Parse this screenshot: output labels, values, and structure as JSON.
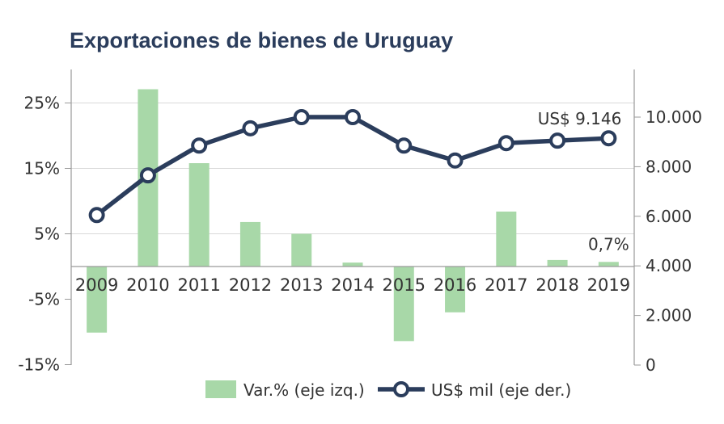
{
  "chart_data": {
    "type": "bar",
    "title": "Exportaciones de bienes de Uruguay",
    "categories": [
      "2009",
      "2010",
      "2011",
      "2012",
      "2013",
      "2014",
      "2015",
      "2016",
      "2017",
      "2018",
      "2019"
    ],
    "series": [
      {
        "name": "Var.% (eje izq.)",
        "type": "bar",
        "axis": "left",
        "color": "#a8d8a8",
        "values": [
          -10.1,
          27.1,
          15.8,
          6.8,
          5.0,
          0.6,
          -11.4,
          -7.0,
          8.4,
          1.0,
          0.7
        ]
      },
      {
        "name": "US$ mil (eje der.)",
        "type": "line",
        "axis": "right",
        "color": "#2b3d5c",
        "values": [
          6050,
          7650,
          8850,
          9550,
          10000,
          10000,
          8850,
          8250,
          8950,
          9050,
          9146
        ]
      }
    ],
    "left_axis": {
      "ylim": [
        -15,
        30
      ],
      "ticks": [
        25,
        15,
        5,
        -5,
        -15
      ],
      "tick_labels": [
        "25%",
        "15%",
        "5%",
        "-5%",
        "-15%"
      ]
    },
    "right_axis": {
      "ylim": [
        0,
        11000
      ],
      "ticks": [
        10000,
        8000,
        6000,
        4000,
        2000,
        0
      ],
      "tick_labels": [
        "10.000",
        "8.000",
        "6.000",
        "4.000",
        "2.000",
        "0"
      ]
    },
    "grid": true,
    "legend_position": "bottom",
    "annotations": [
      {
        "text": "US$ 9.146",
        "series": 1,
        "index": 10
      },
      {
        "text": "0,7%",
        "series": 0,
        "index": 10
      }
    ]
  }
}
